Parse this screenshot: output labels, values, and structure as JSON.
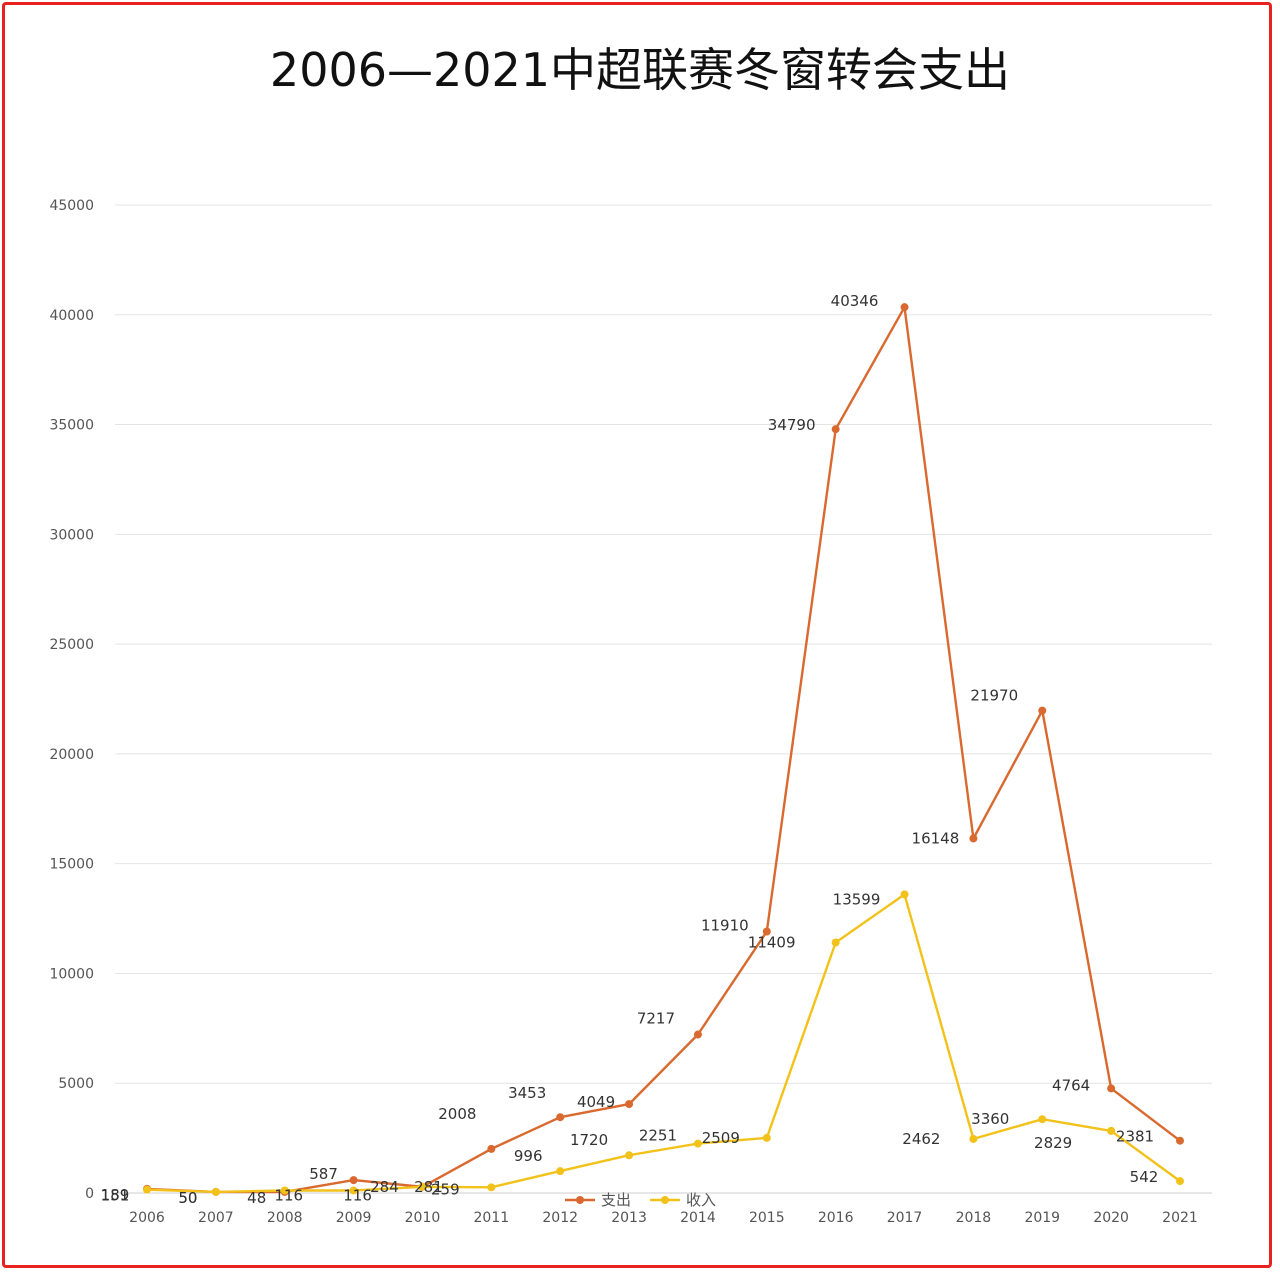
{
  "chart_data": {
    "type": "line",
    "title": "2006—2021中超联赛冬窗转会支出",
    "xlabel": "",
    "ylabel": "",
    "ylim": [
      0,
      45000
    ],
    "yticks": [
      0,
      5000,
      10000,
      15000,
      20000,
      25000,
      30000,
      35000,
      40000,
      45000
    ],
    "grid": true,
    "legend": "bottom",
    "categories": [
      "2006",
      "2007",
      "2008",
      "2009",
      "2010",
      "2011",
      "2012",
      "2013",
      "2014",
      "2015",
      "2016",
      "2017",
      "2018",
      "2019",
      "2020",
      "2021"
    ],
    "series": [
      {
        "name": "支出",
        "color": "#d9692f",
        "values": [
          189,
          50,
          48,
          587,
          284,
          2008,
          3453,
          4049,
          7217,
          11910,
          34790,
          40346,
          16148,
          21970,
          4764,
          2381
        ]
      },
      {
        "name": "收入",
        "color": "#f2c21a",
        "values": [
          151,
          50,
          116,
          116,
          281,
          259,
          996,
          1720,
          2251,
          2509,
          11409,
          13599,
          2462,
          3360,
          2829,
          542
        ]
      }
    ]
  }
}
